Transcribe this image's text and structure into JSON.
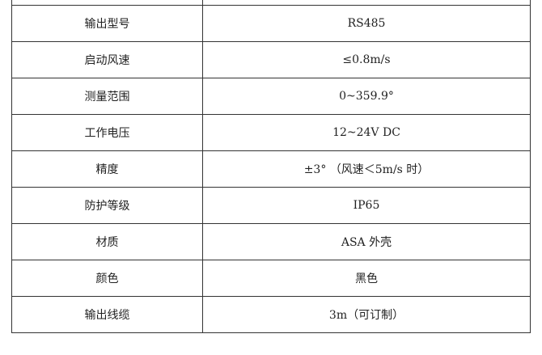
{
  "table": {
    "rows": [
      {
        "label": "",
        "value": ""
      },
      {
        "label": "输出型号",
        "value": "RS485"
      },
      {
        "label": "启动风速",
        "value": "≤0.8m/s"
      },
      {
        "label": "测量范围",
        "value": "0~359.9°"
      },
      {
        "label": "工作电压",
        "value": "12~24V DC"
      },
      {
        "label": "精度",
        "value": "±3° （风速＜5m/s 时）"
      },
      {
        "label": "防护等级",
        "value": "IP65"
      },
      {
        "label": "材质",
        "value": "ASA 外壳"
      },
      {
        "label": "颜色",
        "value": "黑色"
      },
      {
        "label": "输出线缆",
        "value": "3m（可订制）"
      }
    ]
  }
}
